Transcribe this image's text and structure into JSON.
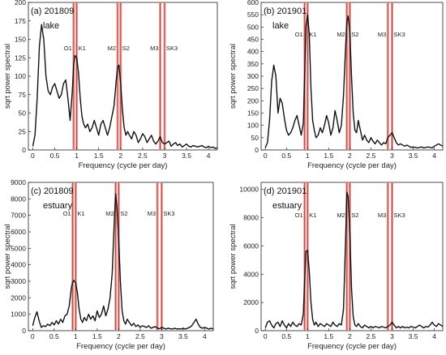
{
  "figure": {
    "xlabel": "Frequency (cycle per day)",
    "ylabel": "sqrt power spectral"
  },
  "chart_data": [
    {
      "type": "line",
      "title": "(a) 201809",
      "subtitle": "lake",
      "xlabel": "Frequency (cycle per day)",
      "ylabel": "sqrt power spectral",
      "xlim": [
        -0.1,
        4.2
      ],
      "ylim": [
        0,
        200
      ],
      "xticks": [
        0,
        0.5,
        1,
        1.5,
        2,
        2.5,
        3,
        3.5,
        4
      ],
      "yticks": [
        0,
        25,
        50,
        75,
        100,
        125,
        150,
        175,
        200
      ],
      "constituent_labels": [
        "O1",
        "K1",
        "M2",
        "S2",
        "M3",
        "SK3"
      ],
      "constituent_freqs": [
        0.93,
        1.0,
        1.93,
        2.0,
        2.9,
        3.0
      ],
      "x": [
        0,
        0.05,
        0.1,
        0.15,
        0.2,
        0.25,
        0.3,
        0.35,
        0.4,
        0.45,
        0.5,
        0.55,
        0.6,
        0.65,
        0.7,
        0.75,
        0.8,
        0.85,
        0.9,
        0.93,
        0.96,
        1.0,
        1.04,
        1.08,
        1.12,
        1.16,
        1.2,
        1.25,
        1.3,
        1.35,
        1.4,
        1.45,
        1.5,
        1.55,
        1.6,
        1.65,
        1.7,
        1.75,
        1.8,
        1.85,
        1.9,
        1.93,
        1.96,
        2.0,
        2.04,
        2.08,
        2.12,
        2.16,
        2.2,
        2.25,
        2.3,
        2.35,
        2.4,
        2.45,
        2.5,
        2.55,
        2.6,
        2.65,
        2.7,
        2.75,
        2.8,
        2.85,
        2.9,
        2.95,
        3.0,
        3.05,
        3.1,
        3.15,
        3.2,
        3.25,
        3.3,
        3.35,
        3.4,
        3.45,
        3.5,
        3.55,
        3.6,
        3.65,
        3.7,
        3.75,
        3.8,
        3.85,
        3.9,
        3.95,
        4.0,
        4.05,
        4.1,
        4.15,
        4.2
      ],
      "y": [
        5,
        20,
        70,
        140,
        170,
        150,
        100,
        80,
        75,
        85,
        90,
        80,
        70,
        75,
        90,
        95,
        70,
        40,
        80,
        115,
        128,
        125,
        105,
        70,
        45,
        35,
        30,
        35,
        25,
        30,
        40,
        30,
        20,
        35,
        40,
        30,
        20,
        30,
        45,
        60,
        95,
        112,
        115,
        90,
        55,
        30,
        20,
        25,
        20,
        15,
        25,
        20,
        10,
        15,
        22,
        18,
        10,
        15,
        20,
        12,
        8,
        12,
        18,
        10,
        8,
        10,
        12,
        5,
        8,
        10,
        6,
        8,
        4,
        6,
        8,
        5,
        4,
        6,
        5,
        4,
        5,
        6,
        4,
        3,
        5,
        3,
        4,
        2,
        3
      ]
    },
    {
      "type": "line",
      "title": "(b) 201901",
      "subtitle": "lake",
      "xlabel": "Frequency (cycle per day)",
      "ylabel": "sqrt power spectral",
      "xlim": [
        -0.1,
        4.2
      ],
      "ylim": [
        0,
        600
      ],
      "xticks": [
        0,
        0.5,
        1,
        1.5,
        2,
        2.5,
        3,
        3.5,
        4
      ],
      "yticks": [
        0,
        50,
        100,
        150,
        200,
        250,
        300,
        350,
        400,
        450,
        500,
        550,
        600
      ],
      "constituent_labels": [
        "O1",
        "K1",
        "M2",
        "S2",
        "M3",
        "SK3"
      ],
      "constituent_freqs": [
        0.93,
        1.0,
        1.93,
        2.0,
        2.9,
        3.0
      ],
      "x": [
        0,
        0.05,
        0.1,
        0.15,
        0.2,
        0.25,
        0.3,
        0.35,
        0.4,
        0.45,
        0.5,
        0.55,
        0.6,
        0.65,
        0.7,
        0.75,
        0.8,
        0.85,
        0.9,
        0.93,
        0.96,
        1.0,
        1.04,
        1.08,
        1.12,
        1.16,
        1.2,
        1.25,
        1.3,
        1.35,
        1.4,
        1.45,
        1.5,
        1.55,
        1.6,
        1.65,
        1.7,
        1.75,
        1.8,
        1.85,
        1.9,
        1.93,
        1.96,
        2.0,
        2.04,
        2.08,
        2.12,
        2.16,
        2.2,
        2.25,
        2.3,
        2.35,
        2.4,
        2.45,
        2.5,
        2.55,
        2.6,
        2.65,
        2.7,
        2.75,
        2.8,
        2.85,
        2.9,
        2.95,
        3.0,
        3.05,
        3.1,
        3.15,
        3.2,
        3.25,
        3.3,
        3.35,
        3.4,
        3.45,
        3.5,
        3.55,
        3.6,
        3.65,
        3.7,
        3.75,
        3.8,
        3.85,
        3.9,
        3.95,
        4.0,
        4.05,
        4.1,
        4.15,
        4.2
      ],
      "y": [
        10,
        30,
        120,
        280,
        345,
        300,
        150,
        210,
        190,
        130,
        80,
        60,
        70,
        90,
        120,
        140,
        100,
        60,
        110,
        300,
        500,
        550,
        470,
        250,
        120,
        80,
        50,
        60,
        90,
        70,
        100,
        140,
        110,
        60,
        90,
        160,
        120,
        70,
        100,
        220,
        420,
        520,
        545,
        480,
        300,
        150,
        80,
        70,
        120,
        80,
        40,
        60,
        40,
        30,
        50,
        35,
        25,
        40,
        30,
        20,
        30,
        25,
        50,
        60,
        70,
        50,
        30,
        20,
        25,
        20,
        15,
        20,
        15,
        10,
        12,
        10,
        8,
        10,
        12,
        8,
        10,
        12,
        10,
        8,
        15,
        20,
        25,
        20,
        15
      ]
    },
    {
      "type": "line",
      "title": "(c) 201809",
      "subtitle": "estuary",
      "xlabel": "Frequency (cycle per day)",
      "ylabel": "sqrt power spectral",
      "xlim": [
        -0.1,
        4.2
      ],
      "ylim": [
        0,
        9000
      ],
      "xticks": [
        0,
        0.5,
        1,
        1.5,
        2,
        2.5,
        3,
        3.5,
        4
      ],
      "yticks": [
        0,
        1000,
        2000,
        3000,
        4000,
        5000,
        6000,
        7000,
        8000,
        9000
      ],
      "constituent_labels": [
        "O1",
        "K1",
        "M2",
        "S2",
        "M3",
        "SK3"
      ],
      "constituent_freqs": [
        0.93,
        1.0,
        1.93,
        2.0,
        2.9,
        3.0
      ],
      "x": [
        0,
        0.05,
        0.1,
        0.15,
        0.2,
        0.25,
        0.3,
        0.35,
        0.4,
        0.45,
        0.5,
        0.55,
        0.6,
        0.65,
        0.7,
        0.75,
        0.8,
        0.85,
        0.9,
        0.93,
        0.96,
        1.0,
        1.04,
        1.08,
        1.12,
        1.16,
        1.2,
        1.25,
        1.3,
        1.35,
        1.4,
        1.45,
        1.5,
        1.55,
        1.6,
        1.65,
        1.7,
        1.75,
        1.8,
        1.85,
        1.9,
        1.93,
        1.96,
        2.0,
        2.04,
        2.08,
        2.12,
        2.16,
        2.2,
        2.25,
        2.3,
        2.35,
        2.4,
        2.45,
        2.5,
        2.55,
        2.6,
        2.65,
        2.7,
        2.75,
        2.8,
        2.85,
        2.9,
        2.95,
        3.0,
        3.05,
        3.1,
        3.15,
        3.2,
        3.25,
        3.3,
        3.35,
        3.4,
        3.45,
        3.5,
        3.55,
        3.6,
        3.65,
        3.7,
        3.75,
        3.8,
        3.85,
        3.9,
        3.95,
        4.0,
        4.05,
        4.1,
        4.15,
        4.2
      ],
      "y": [
        300,
        800,
        1150,
        600,
        200,
        300,
        250,
        400,
        300,
        500,
        350,
        600,
        400,
        700,
        500,
        900,
        1000,
        1500,
        2600,
        2950,
        3050,
        2900,
        2300,
        1300,
        700,
        500,
        800,
        600,
        1000,
        700,
        900,
        600,
        1200,
        800,
        1000,
        1500,
        900,
        1300,
        2000,
        3500,
        6800,
        8300,
        7500,
        5500,
        3000,
        1200,
        600,
        400,
        700,
        500,
        300,
        450,
        250,
        350,
        200,
        300,
        250,
        200,
        300,
        150,
        200,
        250,
        150,
        120,
        200,
        150,
        100,
        150,
        120,
        100,
        150,
        100,
        120,
        100,
        150,
        100,
        150,
        200,
        300,
        500,
        700,
        400,
        200,
        150,
        200,
        150,
        100,
        150,
        100
      ]
    },
    {
      "type": "line",
      "title": "(d) 201901",
      "subtitle": "estuary",
      "xlabel": "Frequency (cycle per day)",
      "ylabel": "sqrt power spectral",
      "xlim": [
        -0.1,
        4.2
      ],
      "ylim": [
        0,
        10500
      ],
      "xticks": [
        0,
        0.5,
        1,
        1.5,
        2,
        2.5,
        3,
        3.5,
        4
      ],
      "yticks": [
        0,
        2000,
        4000,
        6000,
        8000,
        10000
      ],
      "constituent_labels": [
        "O1",
        "K1",
        "M2",
        "S2",
        "M3",
        "SK3"
      ],
      "constituent_freqs": [
        0.93,
        1.0,
        1.93,
        2.0,
        2.9,
        3.0
      ],
      "x": [
        0,
        0.05,
        0.1,
        0.15,
        0.2,
        0.25,
        0.3,
        0.35,
        0.4,
        0.45,
        0.5,
        0.55,
        0.6,
        0.65,
        0.7,
        0.75,
        0.8,
        0.85,
        0.9,
        0.93,
        0.96,
        1.0,
        1.04,
        1.08,
        1.12,
        1.16,
        1.2,
        1.25,
        1.3,
        1.35,
        1.4,
        1.45,
        1.5,
        1.55,
        1.6,
        1.65,
        1.7,
        1.75,
        1.8,
        1.85,
        1.9,
        1.93,
        1.96,
        2.0,
        2.04,
        2.08,
        2.12,
        2.16,
        2.2,
        2.25,
        2.3,
        2.35,
        2.4,
        2.45,
        2.5,
        2.55,
        2.6,
        2.65,
        2.7,
        2.75,
        2.8,
        2.85,
        2.9,
        2.95,
        3.0,
        3.05,
        3.1,
        3.15,
        3.2,
        3.25,
        3.3,
        3.35,
        3.4,
        3.45,
        3.5,
        3.55,
        3.6,
        3.65,
        3.7,
        3.75,
        3.8,
        3.85,
        3.9,
        3.95,
        4.0,
        4.05,
        4.1,
        4.15,
        4.2
      ],
      "y": [
        200,
        600,
        700,
        400,
        200,
        500,
        600,
        300,
        700,
        400,
        200,
        500,
        300,
        600,
        400,
        300,
        500,
        400,
        1200,
        3500,
        5600,
        5700,
        4200,
        2000,
        800,
        400,
        600,
        300,
        500,
        400,
        300,
        500,
        400,
        300,
        600,
        400,
        300,
        500,
        400,
        1500,
        6500,
        9800,
        9500,
        7000,
        3000,
        1000,
        400,
        300,
        500,
        300,
        200,
        400,
        300,
        200,
        300,
        200,
        300,
        250,
        200,
        300,
        250,
        200,
        300,
        400,
        600,
        400,
        200,
        300,
        200,
        300,
        200,
        250,
        200,
        300,
        250,
        200,
        300,
        400,
        300,
        200,
        300,
        250,
        400,
        600,
        400,
        300,
        500,
        400,
        300
      ]
    }
  ]
}
